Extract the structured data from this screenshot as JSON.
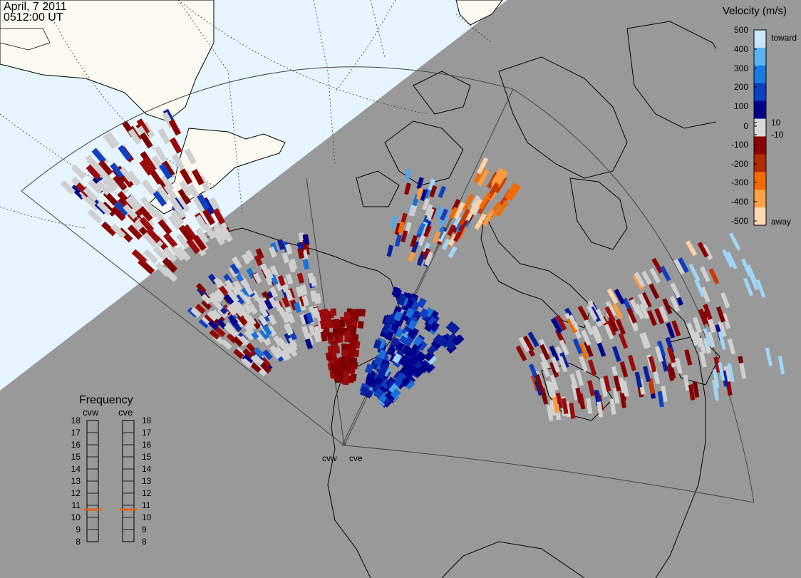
{
  "header": {
    "date": "April, 7 2011",
    "time": "0512:00 UT"
  },
  "colorbar": {
    "title": "Velocity (m/s)",
    "ticks": [
      "500",
      "400",
      "300",
      "200",
      "100",
      "10",
      "0",
      "-10",
      "-100",
      "-200",
      "-300",
      "-400",
      "-500"
    ],
    "toward_label": "toward",
    "away_label": "away",
    "colors": [
      "#ffd9b0",
      "#ffa14a",
      "#f36b00",
      "#b22b00",
      "#8b0000",
      "#d9d9d9",
      "#00008b",
      "#0b3fc4",
      "#1a7be0",
      "#5ab4f2",
      "#c9e8fb"
    ]
  },
  "frequency": {
    "title": "Frequency",
    "radars": [
      "cvw",
      "cve"
    ],
    "levels": [
      "18",
      "17",
      "16",
      "15",
      "14",
      "13",
      "12",
      "11",
      "10",
      "9",
      "8"
    ],
    "current": {
      "cvw": 11,
      "cve": 11
    },
    "marker_color": "#f05a00"
  },
  "stations": [
    "cvw",
    "cve"
  ],
  "colors": {
    "night": "#999999",
    "day_sea": "#e6f5ff",
    "day_land": "#fafaf0",
    "ground_scatter": "#d0d0d0"
  }
}
